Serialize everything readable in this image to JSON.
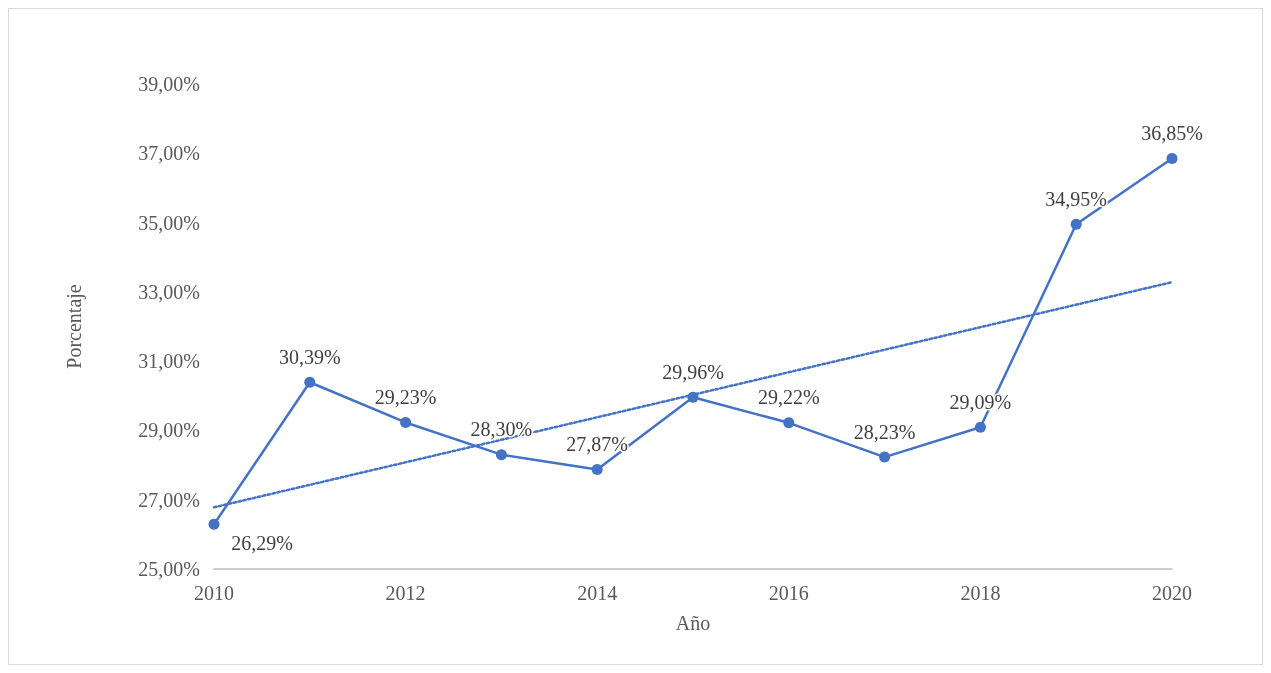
{
  "chart_data": {
    "type": "line",
    "xlabel": "Año",
    "ylabel": "Porcentaje",
    "x": [
      2010,
      2011,
      2012,
      2013,
      2014,
      2015,
      2016,
      2017,
      2018,
      2019,
      2020
    ],
    "series": [
      {
        "color": "#4472c4",
        "marker": "circle",
        "line_style": "solid",
        "values": [
          26.29,
          30.39,
          29.23,
          28.3,
          27.87,
          29.96,
          29.22,
          28.23,
          29.09,
          34.95,
          36.85
        ],
        "value_labels": [
          "26,29%",
          "30,39%",
          "29,23%",
          "28,30%",
          "27,87%",
          "29,96%",
          "29,22%",
          "28,23%",
          "29,09%",
          "34,95%",
          "36,85%"
        ]
      },
      {
        "type": "line",
        "color": "#4472c4",
        "marker": "none",
        "line_style": "dotted",
        "x": [
          2010,
          2020
        ],
        "values": [
          26.78,
          33.28
        ]
      }
    ],
    "xlim": [
      2010,
      2020
    ],
    "xticks": [
      2010,
      2012,
      2014,
      2016,
      2018,
      2020
    ],
    "ylim": [
      25,
      39
    ],
    "yticks": [
      {
        "value": 25,
        "label": "25,00%"
      },
      {
        "value": 27,
        "label": "27,00%"
      },
      {
        "value": 29,
        "label": "29,00%"
      },
      {
        "value": 31,
        "label": "31,00%"
      },
      {
        "value": 33,
        "label": "33,00%"
      },
      {
        "value": 35,
        "label": "35,00%"
      },
      {
        "value": 37,
        "label": "37,00%"
      },
      {
        "value": 39,
        "label": "39,00%"
      }
    ],
    "grid": false
  }
}
